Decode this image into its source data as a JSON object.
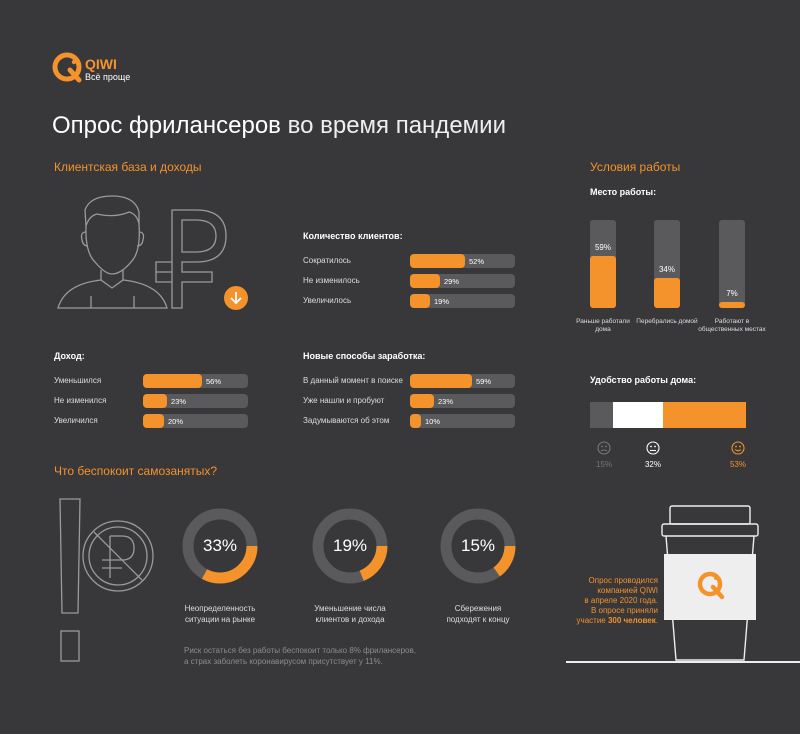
{
  "logo": {
    "brand": "QIWI",
    "tagline": "Всё проще"
  },
  "title": {
    "bold": "Опрос фрилансеров",
    "rest": " во время пандемии"
  },
  "clients_section": {
    "heading": "Клиентская база и доходы"
  },
  "clients_count": {
    "heading": "Количество клиентов:",
    "rows": [
      {
        "label": "Сократилось",
        "percent": "52%",
        "value": 52
      },
      {
        "label": "Не изменилось",
        "percent": "29%",
        "value": 29
      },
      {
        "label": "Увеличилось",
        "percent": "19%",
        "value": 19
      }
    ]
  },
  "income": {
    "heading": "Доход:",
    "rows": [
      {
        "label": "Уменьшился",
        "percent": "56%",
        "value": 56
      },
      {
        "label": "Не изменился",
        "percent": "23%",
        "value": 23
      },
      {
        "label": "Увеличился",
        "percent": "20%",
        "value": 20
      }
    ]
  },
  "new_ways": {
    "heading": "Новые способы заработка:",
    "rows": [
      {
        "label": "В данный момент в поиске",
        "percent": "59%",
        "value": 59
      },
      {
        "label": "Уже нашли и пробуют",
        "percent": "23%",
        "value": 23
      },
      {
        "label": "Задумываются об этом",
        "percent": "10%",
        "value": 10
      }
    ]
  },
  "work_conditions": {
    "heading": "Условия работы",
    "place_heading": "Место работы:",
    "columns": [
      {
        "percent": "59%",
        "value": 59,
        "label": "Раньше работали дома"
      },
      {
        "percent": "34%",
        "value": 34,
        "label": "Перебрались домой"
      },
      {
        "percent": "7%",
        "value": 7,
        "label": "Работают в общественных местах"
      }
    ],
    "comfort_heading": "Удобство работы дома:",
    "comfort": [
      {
        "percent": "15%",
        "value": 15,
        "icon": "sad-face-icon",
        "color": "#5a5a5c"
      },
      {
        "percent": "32%",
        "value": 32,
        "icon": "neutral-face-icon",
        "color": "#ffffff"
      },
      {
        "percent": "53%",
        "value": 53,
        "icon": "happy-face-icon",
        "color": "#f4922b"
      }
    ]
  },
  "worries": {
    "heading": "Что беспокоит самозанятых?",
    "donuts": [
      {
        "percent": "33%",
        "value": 33,
        "label_line1": "Неопределенность",
        "label_line2": "ситуации на рынке"
      },
      {
        "percent": "19%",
        "value": 19,
        "label_line1": "Уменьшение числа",
        "label_line2": "клиентов и дохода"
      },
      {
        "percent": "15%",
        "value": 15,
        "label_line1": "Сбережения",
        "label_line2": "подходят к концу"
      }
    ],
    "note_line1": "Риск остаться без работы беспокоит только 8% фрилансеров,",
    "note_line2": "а страх заболеть коронавирусом присутствует у 11%."
  },
  "survey_note": {
    "line1": "Опрос проводился",
    "line2": "компанией QIWI",
    "line3": "в апреле 2020 года.",
    "line4": "В опросе приняли",
    "line5_prefix": "участие ",
    "line5_bold": "300 человек",
    "line5_suffix": "."
  },
  "colors": {
    "background": "#38383a",
    "accent": "#f4922b",
    "track": "#5a5a5c"
  }
}
